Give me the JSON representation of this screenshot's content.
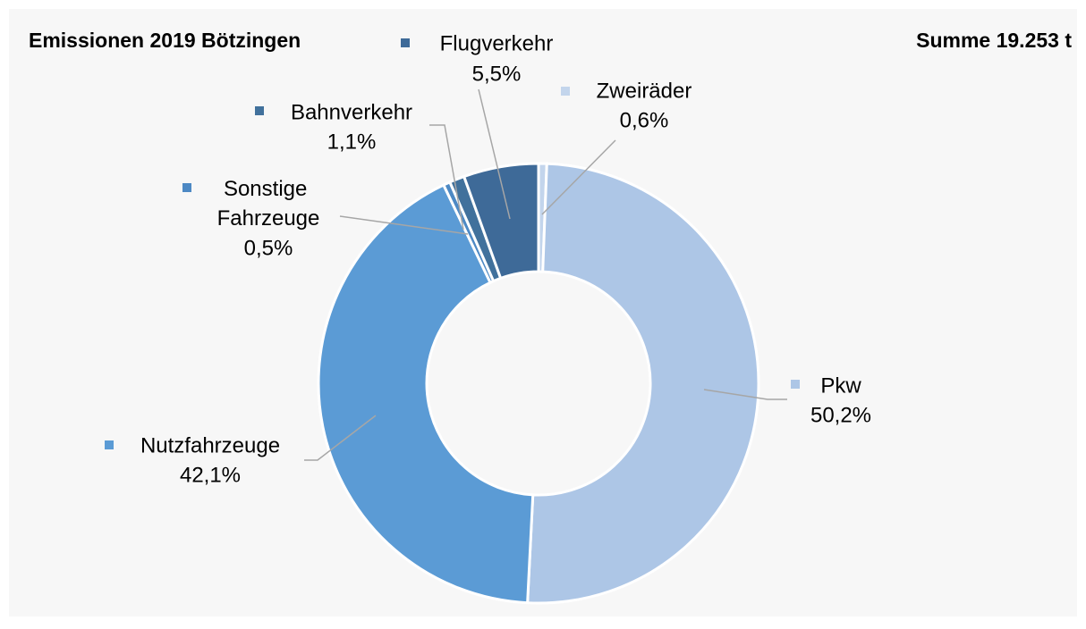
{
  "chart_data": {
    "type": "donut",
    "title": "Emissionen 2019 Bötzingen",
    "subtitle": "Summe 19.253 t",
    "categories": [
      "Zweiräder",
      "Pkw",
      "Nutzfahrzeuge",
      "Sonstige Fahrzeuge",
      "Bahnverkehr",
      "Flugverkehr"
    ],
    "values": [
      0.6,
      50.2,
      42.1,
      0.5,
      1.1,
      5.5
    ],
    "value_labels": [
      "0,6%",
      "50,2%",
      "42,1%",
      "0,5%",
      "1,1%",
      "5,5%"
    ],
    "colors": [
      "#c3d5ec",
      "#adc6e6",
      "#5b9bd5",
      "#4d89c4",
      "#41719c",
      "#3e6a98"
    ]
  }
}
